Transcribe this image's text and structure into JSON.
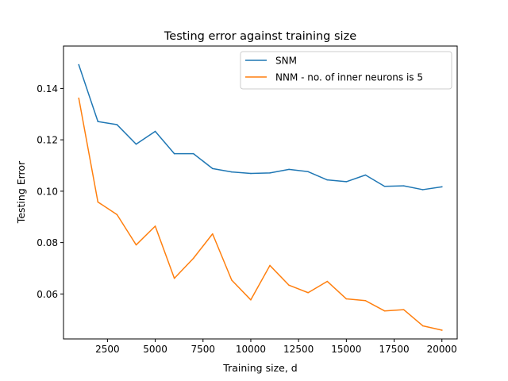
{
  "chart_data": {
    "type": "line",
    "title": "Testing error against training size",
    "xlabel": "Training size, d",
    "ylabel": "Testing Error",
    "xlim": [
      200,
      20800
    ],
    "ylim": [
      0.0425,
      0.1565
    ],
    "xticks": [
      2500,
      5000,
      7500,
      10000,
      12500,
      15000,
      17500,
      20000
    ],
    "xtick_labels": [
      "2500",
      "5000",
      "7500",
      "10000",
      "12500",
      "15000",
      "17500",
      "20000"
    ],
    "yticks": [
      0.06,
      0.08,
      0.1,
      0.12,
      0.14
    ],
    "ytick_labels": [
      "0.06",
      "0.08",
      "0.10",
      "0.12",
      "0.14"
    ],
    "grid": false,
    "legend_position": "top-right",
    "x": [
      1000,
      2000,
      3000,
      4000,
      5000,
      6000,
      7000,
      8000,
      9000,
      10000,
      11000,
      12000,
      13000,
      14000,
      15000,
      16000,
      17000,
      18000,
      19000,
      20000
    ],
    "series": [
      {
        "name": "SNM",
        "color": "#1f77b4",
        "values": [
          0.1492,
          0.1271,
          0.1259,
          0.1183,
          0.1233,
          0.1146,
          0.1146,
          0.1088,
          0.1075,
          0.1069,
          0.1071,
          0.1085,
          0.1076,
          0.1044,
          0.1037,
          0.1063,
          0.1019,
          0.1021,
          0.1006,
          0.1017
        ]
      },
      {
        "name": "NNM - no. of inner neurons is 5",
        "color": "#ff7f0e",
        "values": [
          0.1362,
          0.0958,
          0.0909,
          0.0791,
          0.0864,
          0.0661,
          0.0739,
          0.0834,
          0.0654,
          0.0577,
          0.0711,
          0.0634,
          0.0605,
          0.0649,
          0.0581,
          0.0574,
          0.0534,
          0.0539,
          0.0476,
          0.0459
        ]
      }
    ]
  }
}
